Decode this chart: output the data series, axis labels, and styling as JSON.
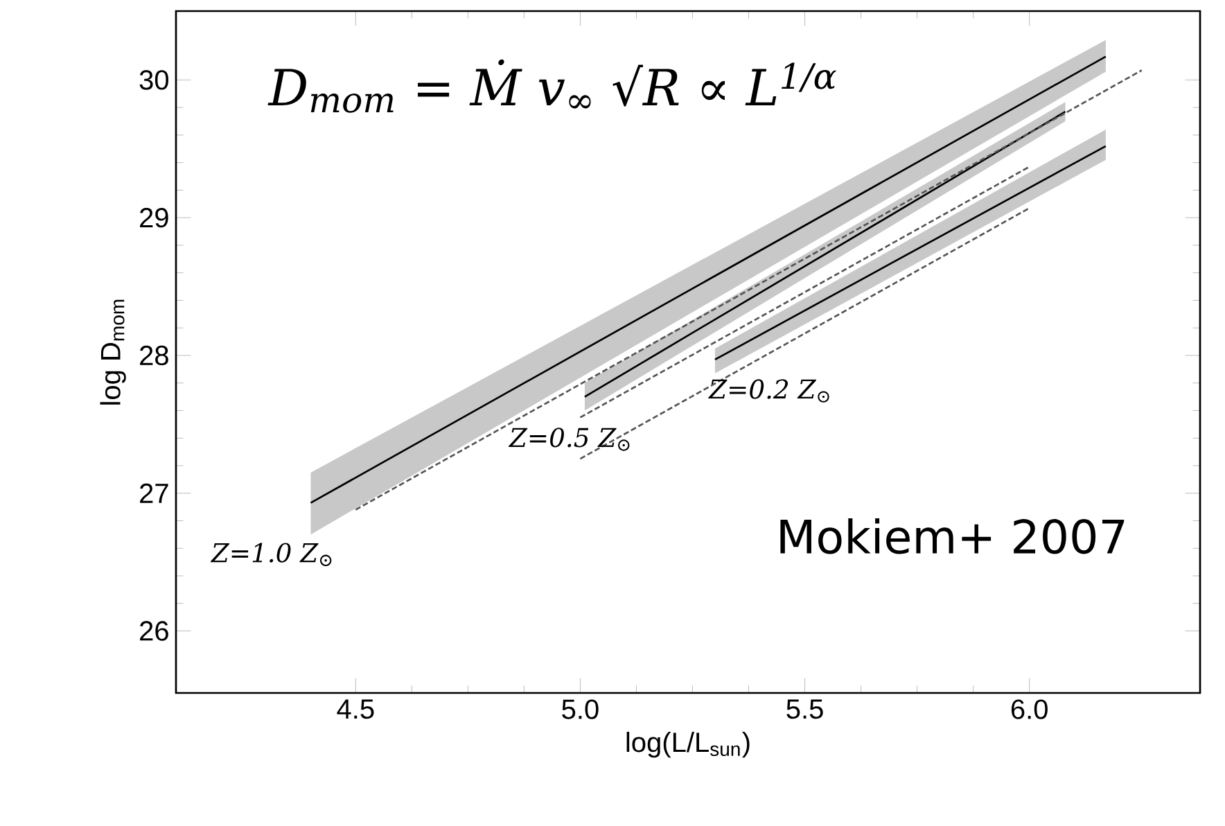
{
  "chart_data": {
    "type": "line",
    "xlabel": "log(L/L$_{sun}$)",
    "ylabel": "log D$_{mom}$",
    "xlim": [
      4.1,
      6.38
    ],
    "ylim": [
      25.55,
      30.5
    ],
    "xticks": [
      4.5,
      {
        "value": 5.0,
        "label": "5.0"
      },
      5.5,
      {
        "value": 6.0,
        "label": "6.0"
      }
    ],
    "yticks": [
      26,
      27,
      28,
      29,
      30
    ],
    "grid": false,
    "marker": "none",
    "series": [
      {
        "color": "#000000",
        "line_style": "solid",
        "x": [
          4.4,
          6.17
        ],
        "values": [
          26.93,
          30.17
        ],
        "lower": [
          26.7,
          30.06
        ],
        "upper": [
          27.15,
          30.29
        ]
      },
      {
        "color": "#000000",
        "line_style": "solid",
        "x": [
          5.01,
          6.08
        ],
        "values": [
          27.7,
          29.77
        ],
        "lower": [
          27.6,
          29.7
        ],
        "upper": [
          27.8,
          29.84
        ]
      },
      {
        "color": "#000000",
        "line_style": "solid",
        "x": [
          5.3,
          6.17
        ],
        "values": [
          27.97,
          29.52
        ],
        "lower": [
          27.87,
          29.42
        ],
        "upper": [
          28.05,
          29.64
        ]
      },
      {
        "color": "#555555",
        "line_style": "dashed",
        "x": [
          4.5,
          6.25
        ],
        "values": [
          26.88,
          30.07
        ]
      },
      {
        "color": "#555555",
        "line_style": "dashed",
        "x": [
          5.0,
          6.0
        ],
        "values": [
          27.55,
          29.37
        ]
      },
      {
        "color": "#555555",
        "line_style": "dashed",
        "x": [
          5.0,
          6.0
        ],
        "values": [
          27.25,
          29.07
        ]
      }
    ],
    "annotations": [
      "D$_{mom}$ = Ṁ v$_{∞}$ √R ∝ L$^{1/α}$",
      "Mokiem+ 2007",
      "Z=1.0 Z$_{⊙}$",
      "Z=0.5 Z$_{⊙}$",
      "Z=0.2 Z$_{⊙}$"
    ]
  }
}
